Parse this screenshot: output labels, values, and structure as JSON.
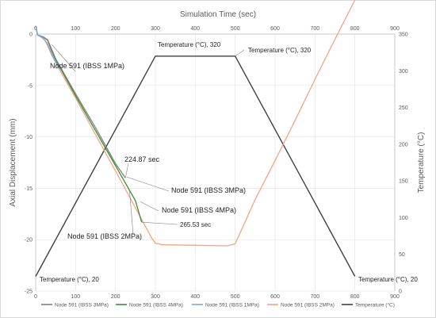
{
  "chart_data": {
    "type": "line",
    "title": "",
    "top_axis": {
      "label": "Simulation Time (sec)",
      "range": [
        0,
        900
      ],
      "ticks": [
        0,
        100,
        200,
        300,
        400,
        500,
        600,
        700,
        800,
        900
      ]
    },
    "bottom_axis": {
      "range": [
        0,
        900
      ],
      "ticks": [
        0,
        100,
        200,
        300,
        400,
        500,
        600,
        700,
        800,
        900
      ]
    },
    "left_axis": {
      "label": "Axial Displacement (mm)",
      "range": [
        -25,
        0
      ],
      "ticks": [
        0,
        -5,
        -10,
        -15,
        -20,
        -25
      ]
    },
    "right_axis": {
      "label": "Temperature (°C)",
      "range": [
        0,
        350
      ],
      "ticks": [
        0,
        50,
        100,
        150,
        200,
        250,
        300,
        350
      ]
    },
    "grid": true,
    "legend_position": "bottom",
    "series": [
      {
        "name": "Node 591 (IBSS 3MPa)",
        "axis": "left",
        "color": "#7f7f7f",
        "x": [
          0,
          5,
          10,
          20,
          30,
          50,
          100,
          150,
          200,
          224.87
        ],
        "y": [
          0.8,
          -0.1,
          -0.15,
          -0.3,
          -0.55,
          -2.4,
          -5.8,
          -9.1,
          -12.6,
          -14.0
        ]
      },
      {
        "name": "Node 591 (IBSS 4MPa)",
        "axis": "left",
        "color": "#3a8e3a",
        "x": [
          0,
          5,
          10,
          20,
          30,
          40,
          50,
          100,
          150,
          200,
          250,
          265.53
        ],
        "y": [
          0.8,
          -0.1,
          -0.2,
          -0.3,
          -0.6,
          -1.6,
          -2.5,
          -6.0,
          -9.4,
          -12.8,
          -16.2,
          -18.3
        ]
      },
      {
        "name": "Node 591 (IBSS 1MPa)",
        "axis": "left",
        "color": "#7aa7d8",
        "x": [
          0,
          5,
          10,
          20,
          30,
          40,
          50,
          60
        ],
        "y": [
          0.8,
          -0.1,
          -0.2,
          -0.4,
          -1.1,
          -2.0,
          -2.7,
          -3.4
        ]
      },
      {
        "name": "Node 591 (IBSS 2MPa)",
        "axis": "left",
        "color": "#f4a582",
        "x": [
          0,
          5,
          10,
          20,
          30,
          50,
          100,
          150,
          200,
          250,
          290,
          300,
          320,
          400,
          480,
          500,
          550,
          600,
          650,
          700,
          750,
          800
        ],
        "y": [
          0.8,
          -0.1,
          -0.2,
          -0.5,
          -0.9,
          -2.8,
          -6.2,
          -9.8,
          -13.3,
          -16.9,
          -19.8,
          -20.35,
          -20.5,
          -20.55,
          -20.6,
          -20.4,
          -16.1,
          -12.3,
          -8.4,
          -4.4,
          -0.5,
          3.3
        ]
      },
      {
        "name": "Temperature (°C)",
        "axis": "right",
        "color": "#404040",
        "x": [
          0,
          300,
          500,
          800
        ],
        "y": [
          20,
          320,
          320,
          20
        ]
      }
    ],
    "annotations": [
      {
        "text": "Node 591 (IBSS 1MPa)",
        "x": 40,
        "y": -1.0
      },
      {
        "text": "224.87 sec",
        "x": 224.87,
        "y": -14.0
      },
      {
        "text": "Node 591 (IBSS 3MPa)",
        "x": 228,
        "y": -13.9
      },
      {
        "text": "Node 591 (IBSS 4MPa)",
        "x": 262,
        "y": -16.3
      },
      {
        "text": "265.53 sec",
        "x": 265.53,
        "y": -18.3
      },
      {
        "text": "Node 591 (IBSS 2MPa)",
        "x": 235,
        "y": -15.5
      },
      {
        "text": "Temperature (°C), 320",
        "x": 300,
        "y": 320
      },
      {
        "text": "Temperature (°C), 320",
        "x": 500,
        "y": 320
      },
      {
        "text": "Temperature (°C), 20",
        "x": 0,
        "y": 20
      },
      {
        "text": "Temperature (°C), 20",
        "x": 800,
        "y": 20
      }
    ]
  }
}
